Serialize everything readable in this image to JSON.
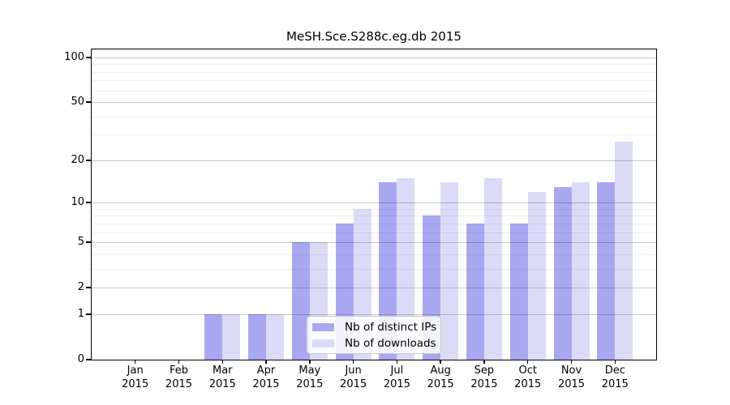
{
  "chart_data": {
    "type": "bar",
    "title": "MeSH.Sce.S288c.eg.db 2015",
    "categories": [
      "Jan",
      "Feb",
      "Mar",
      "Apr",
      "May",
      "Jun",
      "Jul",
      "Aug",
      "Sep",
      "Oct",
      "Nov",
      "Dec"
    ],
    "category_year": "2015",
    "series": [
      {
        "name": "Nb of distinct IPs",
        "color": "#a8a8f1",
        "values": [
          0,
          0,
          1,
          1,
          5,
          7,
          14,
          8,
          7,
          7,
          13,
          14
        ]
      },
      {
        "name": "Nb of downloads",
        "color": "#dbdbf8",
        "values": [
          0,
          0,
          1,
          1,
          5,
          9,
          15,
          14,
          15,
          12,
          14,
          27
        ]
      }
    ],
    "xlabel": "",
    "ylabel": "",
    "y_axis": {
      "scale": "log1p",
      "tick_values": [
        0,
        1,
        2,
        5,
        10,
        20,
        50,
        100
      ],
      "minor_gridline_values": [
        3,
        4,
        6,
        7,
        8,
        9,
        30,
        40,
        60,
        70,
        80,
        90
      ],
      "ylim": [
        0,
        113
      ]
    },
    "legend_position": "inside-bottom-center",
    "grid": true,
    "background_color": "#ffffff"
  }
}
